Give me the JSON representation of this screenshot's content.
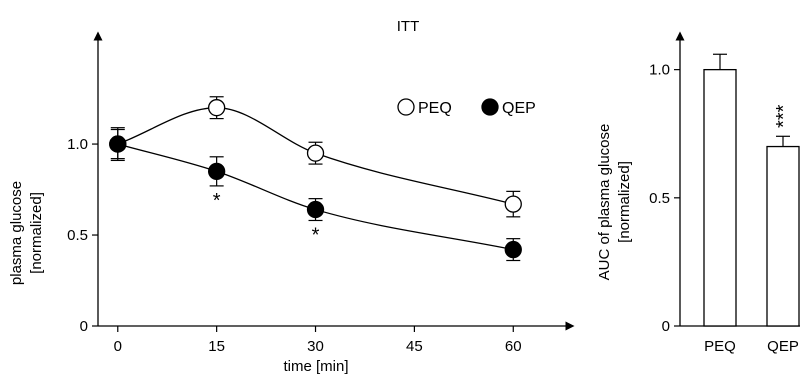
{
  "chart_data": [
    {
      "type": "line",
      "title": "ITT",
      "xlabel": "time [min]",
      "ylabel": "plasma glucose",
      "ylabel_unit": "[normalized]",
      "x": [
        0,
        15,
        30,
        60
      ],
      "xticks": [
        "0",
        "15",
        "30",
        "45",
        "60"
      ],
      "xlim": [
        -3,
        68
      ],
      "yticks": [
        "0",
        "0.5",
        "1.0"
      ],
      "ylim": [
        0,
        1.55
      ],
      "grid": false,
      "legend_position": "top-right",
      "series": [
        {
          "name": "PEQ",
          "marker": "open-circle",
          "values": [
            1.0,
            1.2,
            0.95,
            0.67
          ],
          "errors": [
            0.08,
            0.06,
            0.06,
            0.07
          ]
        },
        {
          "name": "QEP",
          "marker": "filled-circle",
          "values": [
            1.0,
            0.85,
            0.64,
            0.42
          ],
          "errors": [
            0.09,
            0.08,
            0.06,
            0.06
          ]
        }
      ],
      "annotations": [
        {
          "x": 15,
          "series": "QEP",
          "text": "*"
        },
        {
          "x": 30,
          "series": "QEP",
          "text": "*"
        }
      ]
    },
    {
      "type": "bar",
      "xlabel": "",
      "ylabel": "AUC of plasma glucose",
      "ylabel_unit": "[normalized]",
      "categories": [
        "PEQ",
        "QEP"
      ],
      "values": [
        1.0,
        0.7
      ],
      "errors": [
        0.06,
        0.04
      ],
      "yticks": [
        "0",
        "0.5",
        "1.0"
      ],
      "ylim": [
        0,
        1.1
      ],
      "grid": false,
      "annotations": [
        {
          "category": "QEP",
          "text": "***"
        }
      ]
    }
  ]
}
